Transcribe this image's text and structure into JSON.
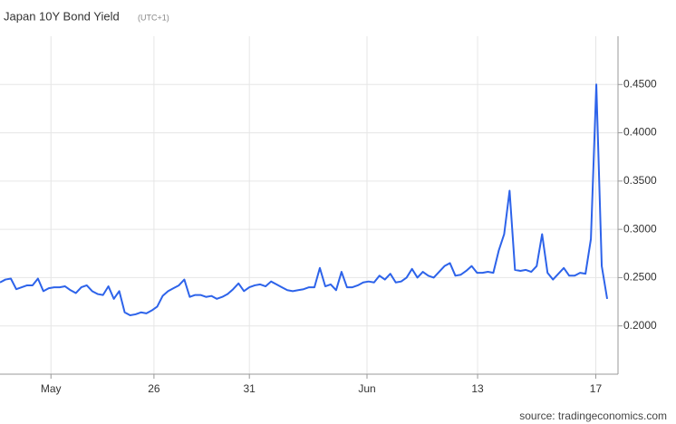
{
  "chart_data": {
    "type": "line",
    "title": "Japan 10Y Bond Yield",
    "subtitle": "(UTC+1)",
    "source": "source: tradingeconomics.com",
    "xlim": [
      0,
      114
    ],
    "xticks": [
      {
        "value": 9.4,
        "label": "May"
      },
      {
        "value": 28.4,
        "label": "26"
      },
      {
        "value": 46,
        "label": "31"
      },
      {
        "value": 67.7,
        "label": "Jun"
      },
      {
        "value": 88.1,
        "label": "13"
      },
      {
        "value": 109.9,
        "label": "17"
      }
    ],
    "ylim": [
      0.15,
      0.5
    ],
    "yticks": [
      {
        "value": 0.2,
        "label": "0.2000"
      },
      {
        "value": 0.25,
        "label": "0.2500"
      },
      {
        "value": 0.3,
        "label": "0.3000"
      },
      {
        "value": 0.35,
        "label": "0.3500"
      },
      {
        "value": 0.4,
        "label": "0.4000"
      },
      {
        "value": 0.45,
        "label": "0.4500"
      }
    ],
    "grid": true,
    "color": "#2d63ea",
    "values": [
      0.245,
      0.248,
      0.249,
      0.238,
      0.24,
      0.242,
      0.242,
      0.249,
      0.236,
      0.239,
      0.24,
      0.24,
      0.241,
      0.237,
      0.234,
      0.24,
      0.242,
      0.236,
      0.233,
      0.232,
      0.241,
      0.228,
      0.236,
      0.214,
      0.211,
      0.212,
      0.214,
      0.213,
      0.216,
      0.22,
      0.231,
      0.236,
      0.239,
      0.242,
      0.248,
      0.23,
      0.232,
      0.232,
      0.23,
      0.231,
      0.228,
      0.23,
      0.233,
      0.238,
      0.244,
      0.236,
      0.24,
      0.242,
      0.243,
      0.241,
      0.246,
      0.243,
      0.24,
      0.237,
      0.236,
      0.237,
      0.238,
      0.24,
      0.24,
      0.26,
      0.241,
      0.243,
      0.237,
      0.256,
      0.24,
      0.24,
      0.242,
      0.245,
      0.246,
      0.245,
      0.252,
      0.248,
      0.254,
      0.245,
      0.246,
      0.25,
      0.259,
      0.25,
      0.256,
      0.252,
      0.25,
      0.256,
      0.262,
      0.265,
      0.252,
      0.253,
      0.257,
      0.262,
      0.255,
      0.255,
      0.256,
      0.255,
      0.278,
      0.295,
      0.34,
      0.258,
      0.257,
      0.258,
      0.256,
      0.262,
      0.295,
      0.255,
      0.248,
      0.254,
      0.26,
      0.252,
      0.252,
      0.255,
      0.254,
      0.29,
      0.45,
      0.262,
      0.228
    ]
  }
}
